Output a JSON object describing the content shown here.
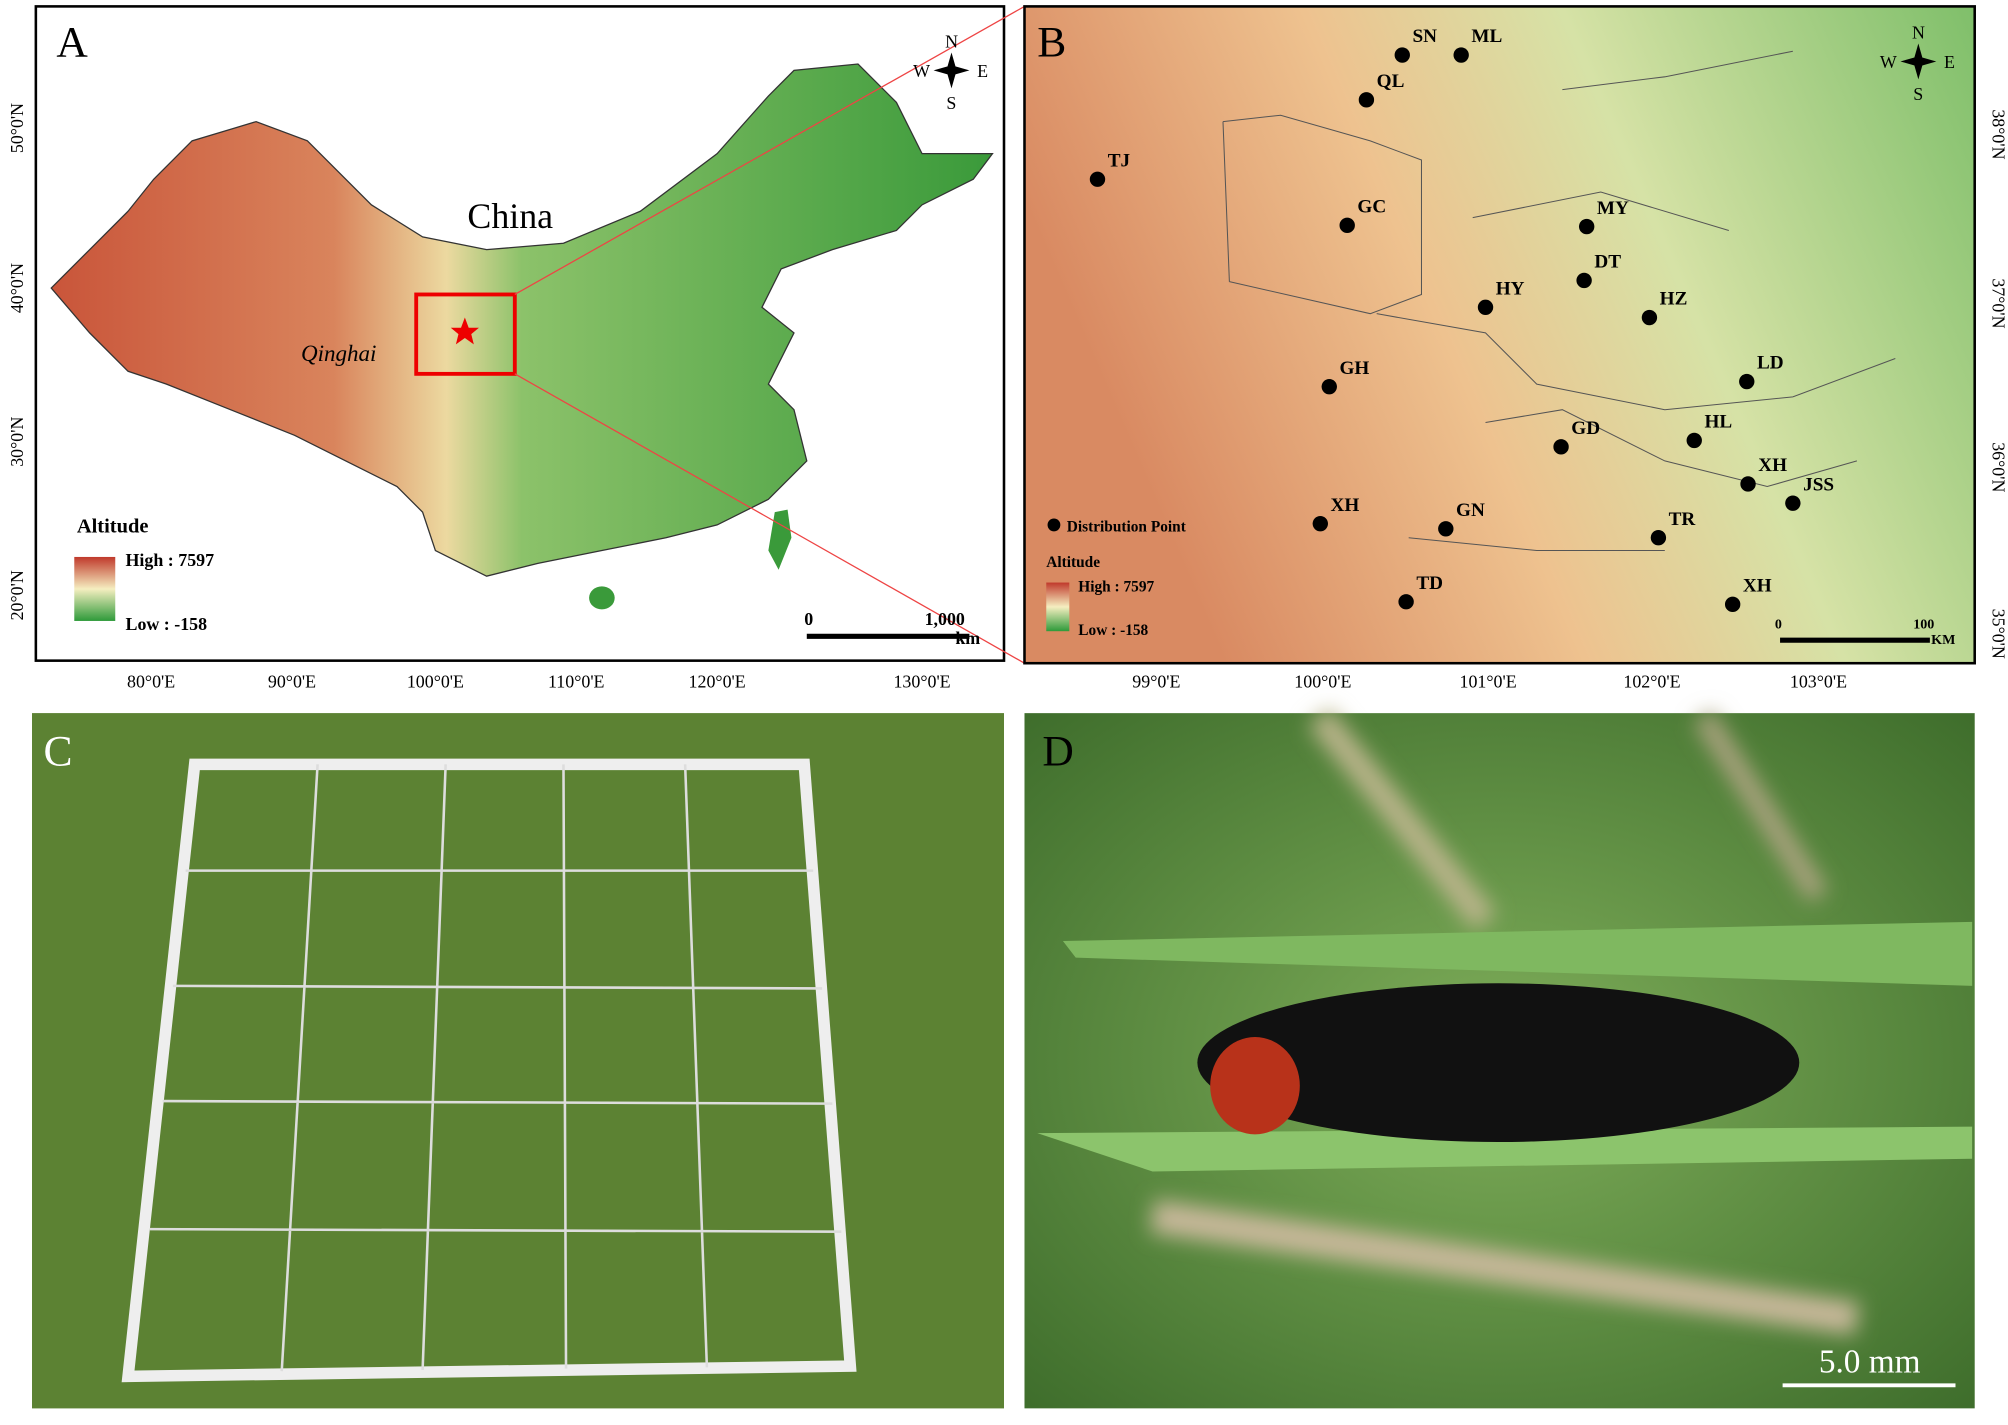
{
  "panel_a": {
    "label": "A",
    "country": "China",
    "province": "Qinghai",
    "legend": {
      "title": "Altitude",
      "high": "High : 7597",
      "low": "Low : -158"
    },
    "scale_bar": {
      "start": "0",
      "end": "1,000",
      "unit": "km"
    },
    "compass": {
      "n": "N",
      "s": "S",
      "w": "W",
      "e": "E"
    },
    "x_axis_labels": [
      "80°0'E",
      "90°0'E",
      "100°0'E",
      "110°0'E",
      "120°0'E",
      "130°0'E"
    ],
    "y_axis_labels": [
      "50°0'N",
      "40°0'N",
      "30°0'N",
      "20°0'N"
    ]
  },
  "panel_b": {
    "label": "B",
    "sites": [
      "SN",
      "ML",
      "QL",
      "TJ",
      "GC",
      "MY",
      "DT",
      "HY",
      "HZ",
      "LD",
      "GH",
      "GD",
      "HL",
      "XH",
      "JSS",
      "XH",
      "GN",
      "TR",
      "TD",
      "XH"
    ],
    "point_legend": "Distribution Point",
    "legend": {
      "title": "Altitude",
      "high": "High : 7597",
      "low": "Low : -158"
    },
    "scale_bar": {
      "start": "0",
      "end": "100",
      "unit": "KM"
    },
    "compass": {
      "n": "N",
      "s": "S",
      "w": "W",
      "e": "E"
    },
    "x_axis_labels": [
      "99°0'E",
      "100°0'E",
      "101°0'E",
      "102°0'E",
      "103°0'E"
    ],
    "y_axis_labels": [
      "38°0'N",
      "37°0'N",
      "36°0'N",
      "35°0'N"
    ]
  },
  "panel_c": {
    "label": "C"
  },
  "panel_d": {
    "label": "D",
    "scale_bar": "5.0 mm"
  }
}
